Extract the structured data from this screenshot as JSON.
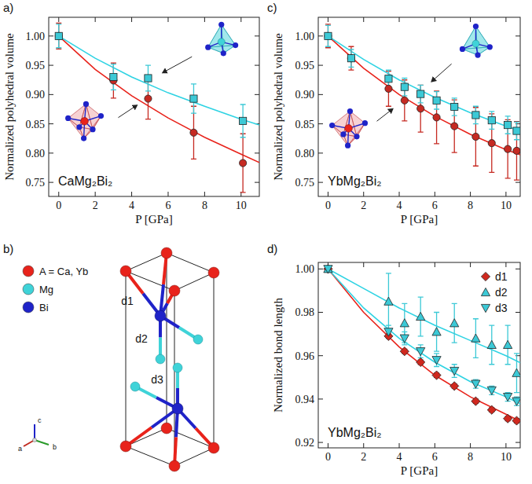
{
  "chart_data": [
    {
      "type": "scatter",
      "panel_label": "a)",
      "annotation": "CaMg₂Bi₂",
      "x_label": "P [GPa]",
      "y_label": "Normalized polyhedral volume",
      "xlim": [
        -0.55,
        11
      ],
      "ylim": [
        0.726,
        1.032
      ],
      "xticks": [
        0,
        2,
        4,
        6,
        8,
        10
      ],
      "yticks": [
        0.75,
        {
          "value": 0.8,
          "label": "0.80"
        },
        0.85,
        {
          "value": 0.9,
          "label": "0.90"
        },
        0.95,
        {
          "value": 1,
          "label": "1.00"
        }
      ],
      "series": [
        {
          "type": "line",
          "color": "#e8231b",
          "line_style": "solid",
          "x": [
            0,
            2,
            4,
            6,
            8,
            10,
            11
          ],
          "values": [
            1.0,
            0.943,
            0.898,
            0.86,
            0.827,
            0.798,
            0.784
          ]
        },
        {
          "type": "line",
          "color": "#2ed3e3",
          "line_style": "solid",
          "x": [
            0,
            2,
            4,
            6,
            8,
            10,
            11
          ],
          "values": [
            1.0,
            0.962,
            0.93,
            0.903,
            0.88,
            0.858,
            0.848
          ]
        },
        {
          "type": "scatter",
          "color": "#c62a22",
          "marker": "circle",
          "x": [
            0,
            3.0,
            4.9,
            7.4,
            10.1
          ],
          "values": [
            1.0,
            0.924,
            0.893,
            0.835,
            0.783
          ],
          "errors": [
            0.022,
            0.03,
            0.035,
            0.045,
            0.05
          ]
        },
        {
          "type": "scatter",
          "color": "#3cc9d6",
          "marker": "square",
          "x": [
            0,
            3.0,
            4.9,
            7.4,
            10.1
          ],
          "values": [
            1.0,
            0.93,
            0.928,
            0.893,
            0.855
          ],
          "errors": [
            0.02,
            0.022,
            0.022,
            0.025,
            0.028
          ]
        }
      ]
    },
    {
      "type": "scatter",
      "panel_label": "c)",
      "annotation": "YbMg₂Bi₂",
      "x_label": "P [GPa]",
      "y_label": "Normalized polyhedral volume",
      "xlim": [
        -0.55,
        10.8
      ],
      "ylim": [
        0.726,
        1.032
      ],
      "xticks": [
        0,
        2,
        4,
        6,
        8,
        10
      ],
      "yticks": [
        0.75,
        {
          "value": 0.8,
          "label": "0.80"
        },
        0.85,
        {
          "value": 0.9,
          "label": "0.90"
        },
        0.95,
        {
          "value": 1,
          "label": "1.00"
        }
      ],
      "series": [
        {
          "type": "line",
          "color": "#e8231b",
          "line_style": "solid",
          "x": [
            0,
            2,
            4,
            6,
            8,
            10,
            11
          ],
          "values": [
            1.0,
            0.945,
            0.9,
            0.863,
            0.832,
            0.806,
            0.795
          ]
        },
        {
          "type": "line",
          "color": "#2ed3e3",
          "line_style": "solid",
          "x": [
            0,
            2,
            4,
            6,
            8,
            10,
            11
          ],
          "values": [
            1.0,
            0.96,
            0.925,
            0.895,
            0.869,
            0.846,
            0.836
          ]
        },
        {
          "type": "scatter",
          "color": "#c62a22",
          "marker": "circle",
          "x": [
            0,
            1.3,
            3.4,
            4.3,
            5.2,
            6.1,
            7.1,
            8.3,
            9.2,
            10.1,
            10.6
          ],
          "values": [
            1.0,
            0.962,
            0.91,
            0.89,
            0.876,
            0.861,
            0.846,
            0.828,
            0.817,
            0.807,
            0.804
          ],
          "errors": [
            0.02,
            0.02,
            0.03,
            0.035,
            0.04,
            0.045,
            0.045,
            0.05,
            0.05,
            0.05,
            0.05
          ]
        },
        {
          "type": "scatter",
          "color": "#3cc9d6",
          "marker": "square",
          "x": [
            0,
            1.3,
            3.4,
            4.3,
            5.2,
            6.1,
            7.1,
            8.3,
            9.2,
            10.1,
            10.6
          ],
          "values": [
            1.0,
            0.962,
            0.927,
            0.913,
            0.901,
            0.89,
            0.879,
            0.865,
            0.856,
            0.848,
            0.838
          ],
          "errors": [
            0.018,
            0.015,
            0.015,
            0.015,
            0.015,
            0.015,
            0.015,
            0.015,
            0.015,
            0.015,
            0.015
          ]
        }
      ]
    },
    {
      "type": "scatter",
      "panel_label": "d)",
      "annotation": "YbMg₂Bi₂",
      "x_label": "P [GPa]",
      "y_label": "Normalized bond length",
      "xlim": [
        -0.55,
        10.8
      ],
      "ylim": [
        0.9175,
        1.003
      ],
      "xticks": [
        0,
        2,
        4,
        6,
        8,
        10
      ],
      "yticks": [
        0.92,
        0.94,
        0.96,
        0.98,
        {
          "value": 1,
          "label": "1.00"
        }
      ],
      "legend": "upper right",
      "series": [
        {
          "type": "line",
          "color": "#e8231b",
          "line_style": "solid",
          "x": [
            0,
            2,
            4,
            6,
            8,
            10,
            11
          ],
          "values": [
            1.0,
            0.98,
            0.964,
            0.951,
            0.941,
            0.933,
            0.929
          ]
        },
        {
          "type": "line",
          "color": "#2ed3e3",
          "line_style": "solid",
          "x": [
            0,
            2,
            4,
            6,
            8,
            10,
            11
          ],
          "values": [
            1.0,
            0.991,
            0.982,
            0.974,
            0.967,
            0.96,
            0.956
          ]
        },
        {
          "type": "line",
          "color": "#2ed3e3",
          "line_style": "solid",
          "x": [
            0,
            2,
            4,
            6,
            8,
            10,
            11
          ],
          "values": [
            1.0,
            0.982,
            0.968,
            0.957,
            0.948,
            0.941,
            0.937
          ]
        },
        {
          "type": "scatter",
          "name": "d1",
          "color": "#d0281e",
          "marker": "diamond",
          "x": [
            0,
            3.4,
            4.3,
            5.2,
            6.1,
            7.1,
            8.3,
            9.2,
            10.1,
            10.6
          ],
          "values": [
            1.0,
            0.969,
            0.962,
            0.957,
            0.951,
            0.946,
            0.939,
            0.935,
            0.931,
            0.93
          ],
          "errors": [
            0.001,
            0.001,
            0.001,
            0.001,
            0.001,
            0.001,
            0.001,
            0.001,
            0.001,
            0.001
          ]
        },
        {
          "type": "scatter",
          "name": "d2",
          "color": "#3cc9d6",
          "marker": "triangle-up",
          "x": [
            0,
            3.4,
            4.3,
            5.2,
            6.1,
            7.1,
            8.3,
            9.2,
            10.1,
            10.6
          ],
          "values": [
            1.0,
            0.985,
            0.975,
            0.978,
            0.971,
            0.975,
            0.968,
            0.965,
            0.965,
            0.952
          ],
          "errors": [
            0.001,
            0.013,
            0.009,
            0.009,
            0.009,
            0.009,
            0.009,
            0.009,
            0.009,
            0.009
          ]
        },
        {
          "type": "scatter",
          "name": "d3",
          "color": "#3cc9d6",
          "marker": "triangle-down",
          "x": [
            0,
            3.4,
            4.3,
            5.2,
            6.1,
            7.1,
            8.3,
            9.2,
            10.1,
            10.6
          ],
          "values": [
            1.0,
            0.971,
            0.968,
            0.962,
            0.958,
            0.953,
            0.947,
            0.944,
            0.941,
            0.939
          ],
          "errors": [
            0.001,
            0.003,
            0.003,
            0.003,
            0.003,
            0.003,
            0.002,
            0.002,
            0.002,
            0.002
          ]
        }
      ]
    }
  ],
  "structure": {
    "panel_label": "b)",
    "legend": [
      {
        "label": "A = Ca, Yb",
        "color": "#e8231b"
      },
      {
        "label": "Mg",
        "color": "#3fd3d8"
      },
      {
        "label": "Bi",
        "color": "#1f23c8"
      }
    ],
    "bonds": [
      "d1",
      "d2",
      "d3"
    ],
    "axes": [
      "a",
      "b",
      "c"
    ]
  }
}
